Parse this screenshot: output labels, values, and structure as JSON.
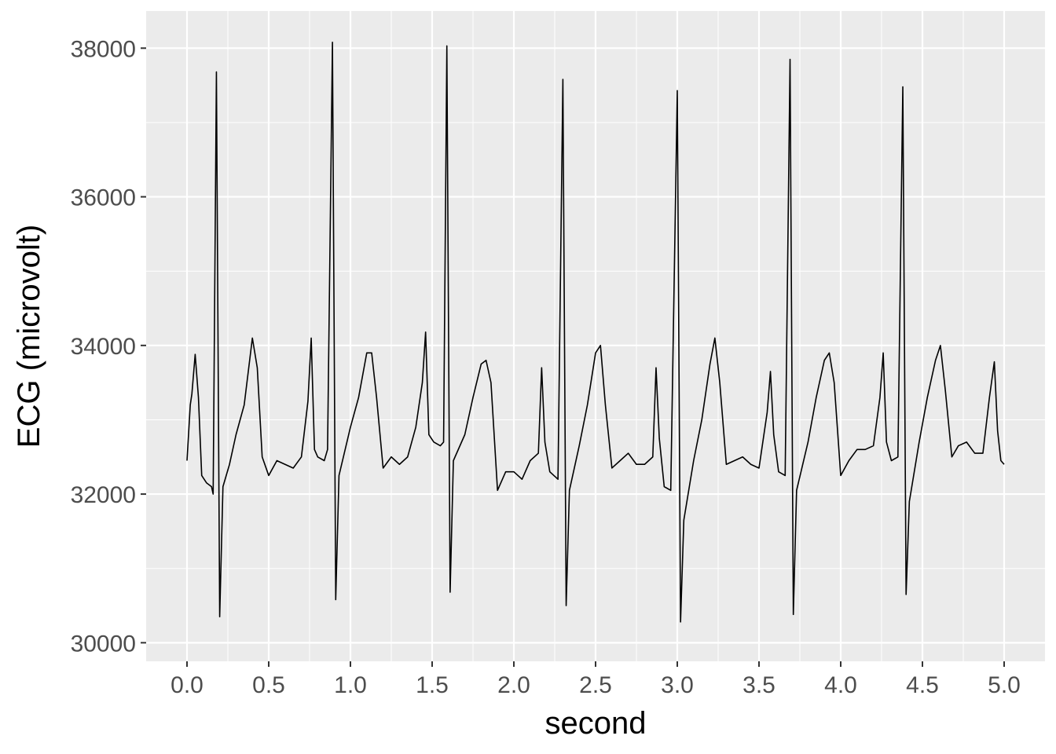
{
  "chart_data": {
    "type": "line",
    "title": "",
    "xlabel": "second",
    "ylabel": "ECG (microvolt)",
    "xlim": [
      -0.25,
      5.25
    ],
    "ylim": [
      29750,
      38500
    ],
    "x_ticks": [
      0.0,
      0.5,
      1.0,
      1.5,
      2.0,
      2.5,
      3.0,
      3.5,
      4.0,
      4.5,
      5.0
    ],
    "x_tick_labels": [
      "0.0",
      "0.5",
      "1.0",
      "1.5",
      "2.0",
      "2.5",
      "3.0",
      "3.5",
      "4.0",
      "4.5",
      "5.0"
    ],
    "y_ticks": [
      30000,
      32000,
      34000,
      36000,
      38000
    ],
    "y_tick_labels": [
      "30000",
      "32000",
      "34000",
      "36000",
      "38000"
    ],
    "grid": true,
    "legend": "none",
    "colors": {
      "panel": "#ebebeb",
      "grid": "#ffffff",
      "line": "#000000"
    },
    "series": [
      {
        "x": [
          0.0,
          0.02,
          0.03,
          0.05,
          0.07,
          0.09,
          0.12,
          0.15,
          0.16,
          0.18,
          0.2,
          0.22,
          0.26,
          0.3,
          0.35,
          0.4,
          0.43,
          0.46,
          0.5,
          0.55,
          0.6,
          0.65,
          0.7,
          0.74,
          0.76,
          0.78,
          0.8,
          0.84,
          0.86,
          0.89,
          0.91,
          0.93,
          1.0,
          1.05,
          1.1,
          1.13,
          1.16,
          1.2,
          1.25,
          1.3,
          1.35,
          1.4,
          1.44,
          1.46,
          1.48,
          1.51,
          1.55,
          1.57,
          1.59,
          1.61,
          1.63,
          1.7,
          1.75,
          1.8,
          1.83,
          1.86,
          1.9,
          1.95,
          2.0,
          2.05,
          2.1,
          2.15,
          2.17,
          2.19,
          2.22,
          2.27,
          2.3,
          2.32,
          2.34,
          2.4,
          2.45,
          2.5,
          2.53,
          2.56,
          2.6,
          2.65,
          2.7,
          2.75,
          2.8,
          2.85,
          2.87,
          2.89,
          2.92,
          2.96,
          3.0,
          3.02,
          3.04,
          3.1,
          3.15,
          3.2,
          3.23,
          3.26,
          3.3,
          3.35,
          3.4,
          3.45,
          3.5,
          3.55,
          3.57,
          3.59,
          3.62,
          3.66,
          3.69,
          3.71,
          3.73,
          3.8,
          3.85,
          3.9,
          3.93,
          3.96,
          4.0,
          4.05,
          4.1,
          4.15,
          4.2,
          4.24,
          4.26,
          4.28,
          4.31,
          4.35,
          4.38,
          4.4,
          4.42,
          4.48,
          4.53,
          4.58,
          4.61,
          4.64,
          4.68,
          4.72,
          4.77,
          4.82,
          4.87,
          4.91,
          4.94,
          4.96,
          4.98,
          5.0
        ],
        "y": [
          32450,
          33200,
          33350,
          33880,
          33300,
          32250,
          32150,
          32100,
          32000,
          37680,
          30350,
          32100,
          32400,
          32800,
          33200,
          34100,
          33700,
          32500,
          32250,
          32450,
          32400,
          32350,
          32500,
          33250,
          34100,
          32600,
          32500,
          32450,
          32600,
          38080,
          30580,
          32250,
          32900,
          33300,
          33900,
          33900,
          33300,
          32350,
          32500,
          32400,
          32500,
          32900,
          33500,
          34180,
          32800,
          32700,
          32650,
          32700,
          38030,
          30680,
          32450,
          32800,
          33300,
          33750,
          33800,
          33500,
          32050,
          32300,
          32300,
          32200,
          32450,
          32550,
          33700,
          32700,
          32300,
          32200,
          37580,
          30500,
          32050,
          32650,
          33200,
          33900,
          34000,
          33200,
          32350,
          32450,
          32550,
          32400,
          32400,
          32500,
          33700,
          32750,
          32100,
          32050,
          37430,
          30280,
          31650,
          32450,
          33000,
          33750,
          34100,
          33500,
          32400,
          32450,
          32500,
          32400,
          32350,
          33100,
          33650,
          32800,
          32300,
          32250,
          37850,
          30380,
          32050,
          32700,
          33300,
          33800,
          33900,
          33500,
          32250,
          32450,
          32600,
          32600,
          32650,
          33300,
          33900,
          32700,
          32450,
          32500,
          37480,
          30650,
          31900,
          32700,
          33300,
          33800,
          34000,
          33400,
          32500,
          32650,
          32700,
          32550,
          32550,
          33300,
          33780,
          32850,
          32450,
          32400
        ]
      }
    ]
  }
}
